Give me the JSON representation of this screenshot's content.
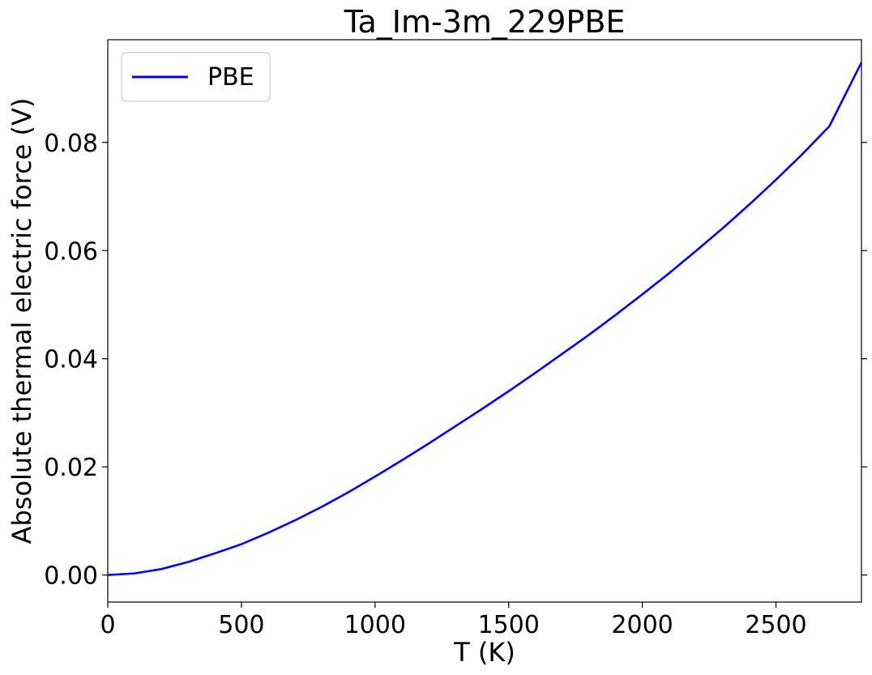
{
  "chart_data": {
    "type": "line",
    "title": "Ta_Im-3m_229PBE",
    "xlabel": "T (K)",
    "ylabel": "Absolute thermal electric force (V)",
    "xlim": [
      0,
      2820
    ],
    "ylim": [
      -0.005,
      0.099
    ],
    "xticks": [
      0,
      500,
      1000,
      1500,
      2000,
      2500
    ],
    "xtick_labels": [
      "0",
      "500",
      "1000",
      "1500",
      "2000",
      "2500"
    ],
    "yticks": [
      0.0,
      0.02,
      0.04,
      0.06,
      0.08
    ],
    "ytick_labels": [
      "0.00",
      "0.02",
      "0.04",
      "0.06",
      "0.08"
    ],
    "grid": false,
    "legend": {
      "position": "top-left"
    },
    "series": [
      {
        "name": "PBE",
        "color": "#0000ff",
        "x": [
          0,
          100,
          200,
          300,
          400,
          500,
          600,
          700,
          800,
          900,
          1000,
          1100,
          1200,
          1300,
          1400,
          1500,
          1600,
          1700,
          1800,
          1900,
          2000,
          2100,
          2200,
          2300,
          2400,
          2500,
          2600,
          2700,
          2820
        ],
        "y": [
          0.0,
          0.0003,
          0.0011,
          0.0024,
          0.004,
          0.0057,
          0.0078,
          0.0101,
          0.0126,
          0.0153,
          0.0182,
          0.0212,
          0.0243,
          0.0275,
          0.0307,
          0.034,
          0.0374,
          0.0409,
          0.0444,
          0.0481,
          0.0519,
          0.0558,
          0.0599,
          0.0641,
          0.0685,
          0.0731,
          0.0779,
          0.083,
          0.0948
        ]
      }
    ]
  }
}
